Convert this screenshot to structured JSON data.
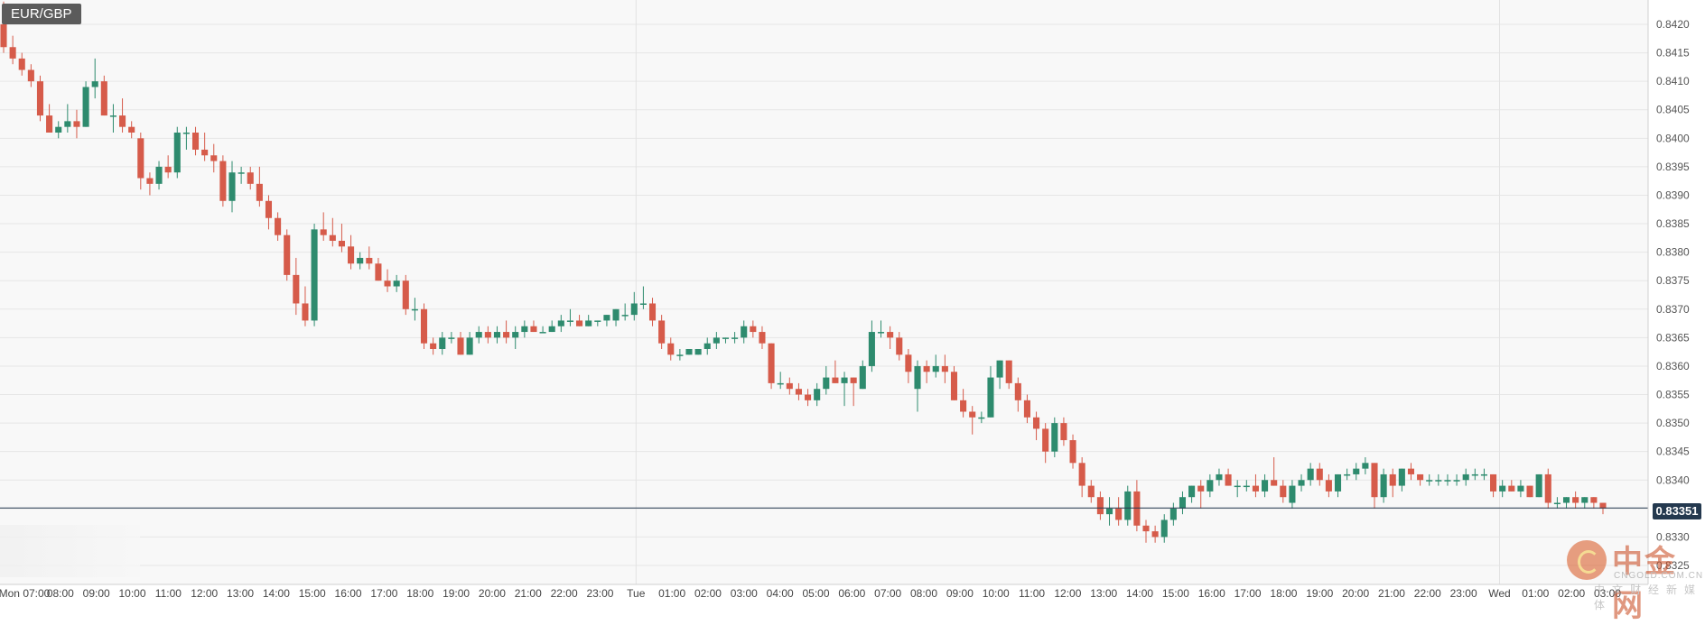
{
  "symbol": "EUR/GBP",
  "current_price_label": "0.83351",
  "watermark": {
    "name": "中金网",
    "url": "CNGOLD.COM.CN",
    "tagline": "中文财经新媒体"
  },
  "colors": {
    "up": "#2e8b6e",
    "down": "#d65b4a",
    "price_line": "#24394f",
    "grid": "#e6e6e6",
    "background": "#f8f8f8"
  },
  "chart_data": {
    "type": "candlestick",
    "symbol": "EUR/GBP",
    "interval": "15m",
    "current_price": 0.83351,
    "y_range": [
      0.8323,
      0.8424
    ],
    "y_ticks": [
      "0.8420",
      "0.8415",
      "0.8410",
      "0.8405",
      "0.8400",
      "0.8395",
      "0.8390",
      "0.8385",
      "0.8380",
      "0.8375",
      "0.8370",
      "0.8365",
      "0.8360",
      "0.8355",
      "0.8350",
      "0.8345",
      "0.8340",
      "0.8335",
      "0.8330",
      "0.8325"
    ],
    "x_labels": [
      "Mon 07:00",
      "08:00",
      "09:00",
      "10:00",
      "11:00",
      "12:00",
      "13:00",
      "14:00",
      "15:00",
      "16:00",
      "17:00",
      "18:00",
      "19:00",
      "20:00",
      "21:00",
      "22:00",
      "23:00",
      "Tue",
      "01:00",
      "02:00",
      "03:00",
      "04:00",
      "05:00",
      "06:00",
      "07:00",
      "08:00",
      "09:00",
      "10:00",
      "11:00",
      "12:00",
      "13:00",
      "14:00",
      "15:00",
      "16:00",
      "17:00",
      "18:00",
      "19:00",
      "20:00",
      "21:00",
      "22:00",
      "23:00",
      "Wed",
      "01:00",
      "02:00",
      "03:00"
    ],
    "candles": [
      {
        "o": 0.842,
        "h": 0.8424,
        "l": 0.8415,
        "c": 0.8416
      },
      {
        "o": 0.8416,
        "h": 0.8418,
        "l": 0.8413,
        "c": 0.8414
      },
      {
        "o": 0.8414,
        "h": 0.8415,
        "l": 0.8411,
        "c": 0.8412
      },
      {
        "o": 0.8412,
        "h": 0.8413,
        "l": 0.8409,
        "c": 0.841
      },
      {
        "o": 0.841,
        "h": 0.8411,
        "l": 0.8403,
        "c": 0.8404
      },
      {
        "o": 0.8404,
        "h": 0.8406,
        "l": 0.8401,
        "c": 0.8401
      },
      {
        "o": 0.8401,
        "h": 0.8403,
        "l": 0.84,
        "c": 0.8402
      },
      {
        "o": 0.8402,
        "h": 0.8406,
        "l": 0.8401,
        "c": 0.8403
      },
      {
        "o": 0.8403,
        "h": 0.8405,
        "l": 0.84,
        "c": 0.8402
      },
      {
        "o": 0.8402,
        "h": 0.841,
        "l": 0.8402,
        "c": 0.8409
      },
      {
        "o": 0.8409,
        "h": 0.8414,
        "l": 0.8407,
        "c": 0.841
      },
      {
        "o": 0.841,
        "h": 0.8411,
        "l": 0.8404,
        "c": 0.8404
      },
      {
        "o": 0.8404,
        "h": 0.8406,
        "l": 0.8401,
        "c": 0.8404
      },
      {
        "o": 0.8404,
        "h": 0.8407,
        "l": 0.8401,
        "c": 0.8402
      },
      {
        "o": 0.8402,
        "h": 0.8403,
        "l": 0.84,
        "c": 0.8401
      },
      {
        "o": 0.84,
        "h": 0.8401,
        "l": 0.8391,
        "c": 0.8393
      },
      {
        "o": 0.8393,
        "h": 0.8394,
        "l": 0.839,
        "c": 0.8392
      },
      {
        "o": 0.8392,
        "h": 0.8396,
        "l": 0.8391,
        "c": 0.8395
      },
      {
        "o": 0.8395,
        "h": 0.8397,
        "l": 0.8393,
        "c": 0.8394
      },
      {
        "o": 0.8394,
        "h": 0.8402,
        "l": 0.8393,
        "c": 0.8401
      },
      {
        "o": 0.8401,
        "h": 0.8402,
        "l": 0.8398,
        "c": 0.8401
      },
      {
        "o": 0.8401,
        "h": 0.8402,
        "l": 0.8397,
        "c": 0.8398
      },
      {
        "o": 0.8398,
        "h": 0.8401,
        "l": 0.8396,
        "c": 0.8397
      },
      {
        "o": 0.8397,
        "h": 0.8399,
        "l": 0.8394,
        "c": 0.8396
      },
      {
        "o": 0.8396,
        "h": 0.8397,
        "l": 0.8388,
        "c": 0.8389
      },
      {
        "o": 0.8389,
        "h": 0.8396,
        "l": 0.8387,
        "c": 0.8394
      },
      {
        "o": 0.8394,
        "h": 0.8395,
        "l": 0.8392,
        "c": 0.8394
      },
      {
        "o": 0.8394,
        "h": 0.8395,
        "l": 0.8391,
        "c": 0.8392
      },
      {
        "o": 0.8392,
        "h": 0.8395,
        "l": 0.8388,
        "c": 0.8389
      },
      {
        "o": 0.8389,
        "h": 0.839,
        "l": 0.8384,
        "c": 0.8386
      },
      {
        "o": 0.8386,
        "h": 0.8387,
        "l": 0.8382,
        "c": 0.8383
      },
      {
        "o": 0.8383,
        "h": 0.8384,
        "l": 0.8375,
        "c": 0.8376
      },
      {
        "o": 0.8376,
        "h": 0.8379,
        "l": 0.8369,
        "c": 0.8371
      },
      {
        "o": 0.8371,
        "h": 0.8374,
        "l": 0.8367,
        "c": 0.8368
      },
      {
        "o": 0.8368,
        "h": 0.8385,
        "l": 0.8367,
        "c": 0.8384
      },
      {
        "o": 0.8384,
        "h": 0.8387,
        "l": 0.8382,
        "c": 0.8383
      },
      {
        "o": 0.8383,
        "h": 0.8386,
        "l": 0.8381,
        "c": 0.8382
      },
      {
        "o": 0.8382,
        "h": 0.8385,
        "l": 0.838,
        "c": 0.8381
      },
      {
        "o": 0.8381,
        "h": 0.8383,
        "l": 0.8377,
        "c": 0.8378
      },
      {
        "o": 0.8378,
        "h": 0.838,
        "l": 0.8377,
        "c": 0.8379
      },
      {
        "o": 0.8379,
        "h": 0.8381,
        "l": 0.8377,
        "c": 0.8378
      },
      {
        "o": 0.8378,
        "h": 0.8379,
        "l": 0.8375,
        "c": 0.8375
      },
      {
        "o": 0.8375,
        "h": 0.8377,
        "l": 0.8373,
        "c": 0.8374
      },
      {
        "o": 0.8374,
        "h": 0.8376,
        "l": 0.8373,
        "c": 0.8375
      },
      {
        "o": 0.8375,
        "h": 0.8376,
        "l": 0.8369,
        "c": 0.837
      },
      {
        "o": 0.837,
        "h": 0.8372,
        "l": 0.8368,
        "c": 0.837
      },
      {
        "o": 0.837,
        "h": 0.8371,
        "l": 0.8363,
        "c": 0.8364
      },
      {
        "o": 0.8364,
        "h": 0.8365,
        "l": 0.8362,
        "c": 0.8363
      },
      {
        "o": 0.8363,
        "h": 0.8366,
        "l": 0.8362,
        "c": 0.8365
      },
      {
        "o": 0.8365,
        "h": 0.8366,
        "l": 0.8364,
        "c": 0.8365
      },
      {
        "o": 0.8365,
        "h": 0.8366,
        "l": 0.8362,
        "c": 0.8362
      },
      {
        "o": 0.8362,
        "h": 0.8366,
        "l": 0.8362,
        "c": 0.8365
      },
      {
        "o": 0.8365,
        "h": 0.8367,
        "l": 0.8364,
        "c": 0.8366
      },
      {
        "o": 0.8366,
        "h": 0.8367,
        "l": 0.8364,
        "c": 0.8365
      },
      {
        "o": 0.8365,
        "h": 0.8367,
        "l": 0.8364,
        "c": 0.8366
      },
      {
        "o": 0.8366,
        "h": 0.8368,
        "l": 0.8364,
        "c": 0.8365
      },
      {
        "o": 0.8365,
        "h": 0.8367,
        "l": 0.8363,
        "c": 0.8366
      },
      {
        "o": 0.8366,
        "h": 0.8368,
        "l": 0.8365,
        "c": 0.8367
      },
      {
        "o": 0.8367,
        "h": 0.8368,
        "l": 0.8366,
        "c": 0.8366
      },
      {
        "o": 0.8366,
        "h": 0.8367,
        "l": 0.8366,
        "c": 0.8366
      },
      {
        "o": 0.8366,
        "h": 0.8368,
        "l": 0.8366,
        "c": 0.8367
      },
      {
        "o": 0.8367,
        "h": 0.8369,
        "l": 0.8366,
        "c": 0.8368
      },
      {
        "o": 0.8368,
        "h": 0.837,
        "l": 0.8367,
        "c": 0.8368
      },
      {
        "o": 0.8368,
        "h": 0.8369,
        "l": 0.8367,
        "c": 0.8367
      },
      {
        "o": 0.8367,
        "h": 0.8369,
        "l": 0.8367,
        "c": 0.8368
      },
      {
        "o": 0.8368,
        "h": 0.8368,
        "l": 0.8367,
        "c": 0.8368
      },
      {
        "o": 0.8368,
        "h": 0.8369,
        "l": 0.8367,
        "c": 0.8369
      },
      {
        "o": 0.8368,
        "h": 0.837,
        "l": 0.8367,
        "c": 0.837
      },
      {
        "o": 0.8369,
        "h": 0.8371,
        "l": 0.8368,
        "c": 0.8369
      },
      {
        "o": 0.8369,
        "h": 0.8373,
        "l": 0.8368,
        "c": 0.8371
      },
      {
        "o": 0.8371,
        "h": 0.8374,
        "l": 0.837,
        "c": 0.8371
      },
      {
        "o": 0.8371,
        "h": 0.8372,
        "l": 0.8367,
        "c": 0.8368
      },
      {
        "o": 0.8368,
        "h": 0.8369,
        "l": 0.8363,
        "c": 0.8364
      },
      {
        "o": 0.8364,
        "h": 0.8365,
        "l": 0.8361,
        "c": 0.8362
      },
      {
        "o": 0.8362,
        "h": 0.8363,
        "l": 0.8361,
        "c": 0.8362
      },
      {
        "o": 0.8362,
        "h": 0.8363,
        "l": 0.8362,
        "c": 0.8363
      },
      {
        "o": 0.8362,
        "h": 0.8363,
        "l": 0.8362,
        "c": 0.8363
      },
      {
        "o": 0.8363,
        "h": 0.8365,
        "l": 0.8362,
        "c": 0.8364
      },
      {
        "o": 0.8364,
        "h": 0.8366,
        "l": 0.8363,
        "c": 0.8365
      },
      {
        "o": 0.8365,
        "h": 0.8365,
        "l": 0.8364,
        "c": 0.8365
      },
      {
        "o": 0.8365,
        "h": 0.8366,
        "l": 0.8364,
        "c": 0.8365
      },
      {
        "o": 0.8365,
        "h": 0.8368,
        "l": 0.8364,
        "c": 0.8367
      },
      {
        "o": 0.8367,
        "h": 0.8368,
        "l": 0.8365,
        "c": 0.8366
      },
      {
        "o": 0.8366,
        "h": 0.8367,
        "l": 0.8363,
        "c": 0.8364
      },
      {
        "o": 0.8364,
        "h": 0.8364,
        "l": 0.8356,
        "c": 0.8357
      },
      {
        "o": 0.8357,
        "h": 0.8359,
        "l": 0.8356,
        "c": 0.8357
      },
      {
        "o": 0.8357,
        "h": 0.8358,
        "l": 0.8355,
        "c": 0.8356
      },
      {
        "o": 0.8356,
        "h": 0.8357,
        "l": 0.8354,
        "c": 0.8355
      },
      {
        "o": 0.8355,
        "h": 0.8356,
        "l": 0.8353,
        "c": 0.8354
      },
      {
        "o": 0.8354,
        "h": 0.8357,
        "l": 0.8353,
        "c": 0.8356
      },
      {
        "o": 0.8356,
        "h": 0.836,
        "l": 0.8355,
        "c": 0.8358
      },
      {
        "o": 0.8358,
        "h": 0.8361,
        "l": 0.8357,
        "c": 0.8357
      },
      {
        "o": 0.8357,
        "h": 0.8359,
        "l": 0.8353,
        "c": 0.8358
      },
      {
        "o": 0.8358,
        "h": 0.8358,
        "l": 0.8353,
        "c": 0.8357
      },
      {
        "o": 0.8356,
        "h": 0.8361,
        "l": 0.8356,
        "c": 0.836
      },
      {
        "o": 0.836,
        "h": 0.8368,
        "l": 0.8359,
        "c": 0.8366
      },
      {
        "o": 0.8366,
        "h": 0.8368,
        "l": 0.8365,
        "c": 0.8366
      },
      {
        "o": 0.8366,
        "h": 0.8367,
        "l": 0.8363,
        "c": 0.8365
      },
      {
        "o": 0.8365,
        "h": 0.8366,
        "l": 0.8361,
        "c": 0.8362
      },
      {
        "o": 0.8362,
        "h": 0.8363,
        "l": 0.8357,
        "c": 0.8359
      },
      {
        "o": 0.8356,
        "h": 0.8361,
        "l": 0.8352,
        "c": 0.836
      },
      {
        "o": 0.836,
        "h": 0.8361,
        "l": 0.8357,
        "c": 0.8359
      },
      {
        "o": 0.8359,
        "h": 0.8362,
        "l": 0.8358,
        "c": 0.836
      },
      {
        "o": 0.836,
        "h": 0.8362,
        "l": 0.8357,
        "c": 0.8359
      },
      {
        "o": 0.8359,
        "h": 0.836,
        "l": 0.8354,
        "c": 0.8354
      },
      {
        "o": 0.8354,
        "h": 0.8356,
        "l": 0.8351,
        "c": 0.8352
      },
      {
        "o": 0.8352,
        "h": 0.8353,
        "l": 0.8348,
        "c": 0.8351
      },
      {
        "o": 0.8351,
        "h": 0.8352,
        "l": 0.835,
        "c": 0.8351
      },
      {
        "o": 0.8351,
        "h": 0.836,
        "l": 0.8351,
        "c": 0.8358
      },
      {
        "o": 0.8358,
        "h": 0.8361,
        "l": 0.8356,
        "c": 0.8361
      },
      {
        "o": 0.8361,
        "h": 0.8361,
        "l": 0.8356,
        "c": 0.8357
      },
      {
        "o": 0.8357,
        "h": 0.8358,
        "l": 0.8352,
        "c": 0.8354
      },
      {
        "o": 0.8354,
        "h": 0.8355,
        "l": 0.835,
        "c": 0.8351
      },
      {
        "o": 0.8351,
        "h": 0.8352,
        "l": 0.8347,
        "c": 0.8349
      },
      {
        "o": 0.8349,
        "h": 0.835,
        "l": 0.8343,
        "c": 0.8345
      },
      {
        "o": 0.8345,
        "h": 0.8351,
        "l": 0.8344,
        "c": 0.835
      },
      {
        "o": 0.835,
        "h": 0.8351,
        "l": 0.8346,
        "c": 0.8347
      },
      {
        "o": 0.8347,
        "h": 0.8348,
        "l": 0.8342,
        "c": 0.8343
      },
      {
        "o": 0.8343,
        "h": 0.8344,
        "l": 0.8337,
        "c": 0.8339
      },
      {
        "o": 0.8339,
        "h": 0.834,
        "l": 0.8336,
        "c": 0.8337
      },
      {
        "o": 0.8337,
        "h": 0.8338,
        "l": 0.8333,
        "c": 0.8334
      },
      {
        "o": 0.8334,
        "h": 0.8337,
        "l": 0.8332,
        "c": 0.8335
      },
      {
        "o": 0.8335,
        "h": 0.8337,
        "l": 0.8332,
        "c": 0.8333
      },
      {
        "o": 0.8333,
        "h": 0.8339,
        "l": 0.8332,
        "c": 0.8338
      },
      {
        "o": 0.8338,
        "h": 0.834,
        "l": 0.8331,
        "c": 0.8332
      },
      {
        "o": 0.8332,
        "h": 0.8333,
        "l": 0.8329,
        "c": 0.8331
      },
      {
        "o": 0.8331,
        "h": 0.8332,
        "l": 0.8329,
        "c": 0.833
      },
      {
        "o": 0.833,
        "h": 0.8334,
        "l": 0.8329,
        "c": 0.8333
      },
      {
        "o": 0.8333,
        "h": 0.8336,
        "l": 0.8332,
        "c": 0.8335
      },
      {
        "o": 0.8335,
        "h": 0.8338,
        "l": 0.8334,
        "c": 0.8337
      },
      {
        "o": 0.8337,
        "h": 0.8339,
        "l": 0.8336,
        "c": 0.8339
      },
      {
        "o": 0.8339,
        "h": 0.834,
        "l": 0.8335,
        "c": 0.8338
      },
      {
        "o": 0.8338,
        "h": 0.8341,
        "l": 0.8337,
        "c": 0.834
      },
      {
        "o": 0.834,
        "h": 0.8342,
        "l": 0.8339,
        "c": 0.8341
      },
      {
        "o": 0.8341,
        "h": 0.8342,
        "l": 0.8339,
        "c": 0.8339
      },
      {
        "o": 0.8339,
        "h": 0.834,
        "l": 0.8337,
        "c": 0.8339
      },
      {
        "o": 0.8339,
        "h": 0.834,
        "l": 0.8338,
        "c": 0.8339
      },
      {
        "o": 0.8339,
        "h": 0.8341,
        "l": 0.8337,
        "c": 0.8338
      },
      {
        "o": 0.8338,
        "h": 0.8341,
        "l": 0.8337,
        "c": 0.834
      },
      {
        "o": 0.834,
        "h": 0.8344,
        "l": 0.8339,
        "c": 0.8339
      },
      {
        "o": 0.8339,
        "h": 0.834,
        "l": 0.8336,
        "c": 0.8337
      },
      {
        "o": 0.8336,
        "h": 0.834,
        "l": 0.8335,
        "c": 0.8339
      },
      {
        "o": 0.8339,
        "h": 0.8341,
        "l": 0.8338,
        "c": 0.834
      },
      {
        "o": 0.834,
        "h": 0.8343,
        "l": 0.8339,
        "c": 0.8342
      },
      {
        "o": 0.8342,
        "h": 0.8343,
        "l": 0.8339,
        "c": 0.834
      },
      {
        "o": 0.834,
        "h": 0.8341,
        "l": 0.8337,
        "c": 0.8338
      },
      {
        "o": 0.8338,
        "h": 0.8341,
        "l": 0.8337,
        "c": 0.8341
      },
      {
        "o": 0.8341,
        "h": 0.8342,
        "l": 0.834,
        "c": 0.8341
      },
      {
        "o": 0.8341,
        "h": 0.8343,
        "l": 0.834,
        "c": 0.8342
      },
      {
        "o": 0.8342,
        "h": 0.8344,
        "l": 0.8341,
        "c": 0.8343
      },
      {
        "o": 0.8343,
        "h": 0.8343,
        "l": 0.8335,
        "c": 0.8337
      },
      {
        "o": 0.8337,
        "h": 0.8342,
        "l": 0.8336,
        "c": 0.8341
      },
      {
        "o": 0.8341,
        "h": 0.8342,
        "l": 0.8337,
        "c": 0.8339
      },
      {
        "o": 0.8339,
        "h": 0.8342,
        "l": 0.8338,
        "c": 0.8342
      },
      {
        "o": 0.8342,
        "h": 0.8343,
        "l": 0.834,
        "c": 0.8341
      },
      {
        "o": 0.8341,
        "h": 0.8341,
        "l": 0.8339,
        "c": 0.834
      },
      {
        "o": 0.834,
        "h": 0.8341,
        "l": 0.8339,
        "c": 0.834
      },
      {
        "o": 0.834,
        "h": 0.8341,
        "l": 0.8339,
        "c": 0.834
      },
      {
        "o": 0.834,
        "h": 0.8341,
        "l": 0.8339,
        "c": 0.834
      },
      {
        "o": 0.834,
        "h": 0.8341,
        "l": 0.8339,
        "c": 0.834
      },
      {
        "o": 0.834,
        "h": 0.8342,
        "l": 0.8339,
        "c": 0.8341
      },
      {
        "o": 0.8341,
        "h": 0.8342,
        "l": 0.834,
        "c": 0.8341
      },
      {
        "o": 0.8341,
        "h": 0.8342,
        "l": 0.834,
        "c": 0.8341
      },
      {
        "o": 0.8341,
        "h": 0.8341,
        "l": 0.8337,
        "c": 0.8338
      },
      {
        "o": 0.8338,
        "h": 0.834,
        "l": 0.8337,
        "c": 0.8339
      },
      {
        "o": 0.8339,
        "h": 0.834,
        "l": 0.8338,
        "c": 0.8338
      },
      {
        "o": 0.8338,
        "h": 0.834,
        "l": 0.8337,
        "c": 0.8339
      },
      {
        "o": 0.8339,
        "h": 0.8339,
        "l": 0.8337,
        "c": 0.8337
      },
      {
        "o": 0.8337,
        "h": 0.8341,
        "l": 0.8337,
        "c": 0.8341
      },
      {
        "o": 0.8341,
        "h": 0.8342,
        "l": 0.8335,
        "c": 0.8336
      },
      {
        "o": 0.8336,
        "h": 0.8337,
        "l": 0.8335,
        "c": 0.8336
      },
      {
        "o": 0.8336,
        "h": 0.8337,
        "l": 0.8335,
        "c": 0.8337
      },
      {
        "o": 0.8337,
        "h": 0.8338,
        "l": 0.8335,
        "c": 0.8336
      },
      {
        "o": 0.8336,
        "h": 0.8337,
        "l": 0.8335,
        "c": 0.8337
      },
      {
        "o": 0.8337,
        "h": 0.8337,
        "l": 0.8335,
        "c": 0.8336
      },
      {
        "o": 0.8336,
        "h": 0.8336,
        "l": 0.8334,
        "c": 0.8335
      }
    ]
  }
}
